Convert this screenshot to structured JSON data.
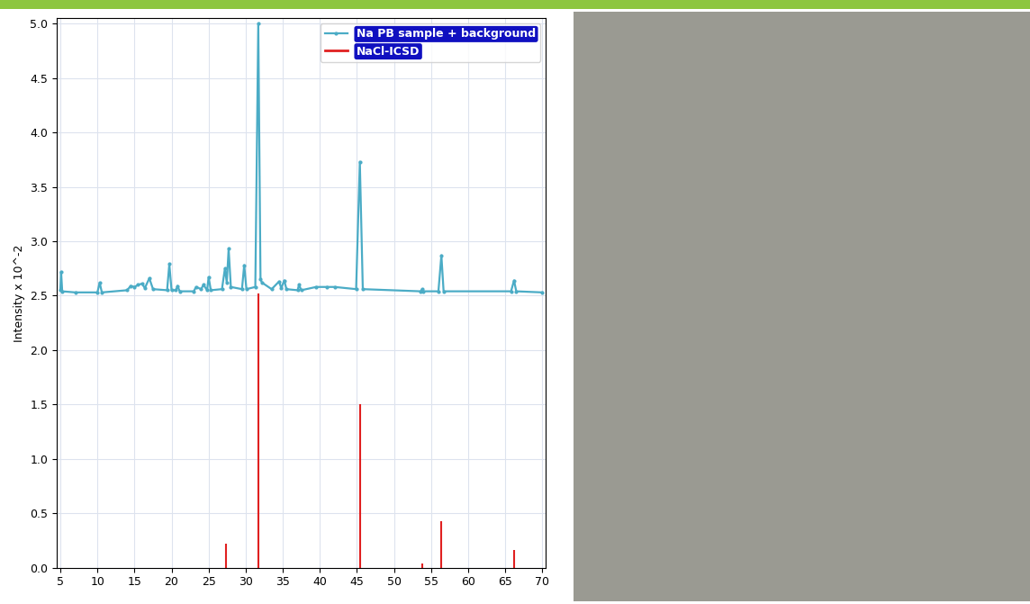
{
  "chart_data": {
    "type": "line",
    "y_label": "Intensity x 10^-2",
    "xlim": [
      4.5,
      70.5
    ],
    "xticks": [
      5,
      10,
      15,
      20,
      25,
      30,
      35,
      40,
      45,
      50,
      55,
      60,
      65,
      70
    ],
    "ylim": [
      0,
      5.05
    ],
    "yticks": [
      {
        "value": 0,
        "label": "0.0"
      },
      {
        "value": 0.5,
        "label": "0.5"
      },
      {
        "value": 1,
        "label": "1.0"
      },
      {
        "value": 1.5,
        "label": "1.5"
      },
      {
        "value": 2,
        "label": "2.0"
      },
      {
        "value": 2.5,
        "label": "2.5"
      },
      {
        "value": 3,
        "label": "3.0"
      },
      {
        "value": 3.5,
        "label": "3.5"
      },
      {
        "value": 4,
        "label": "4.0"
      },
      {
        "value": 4.5,
        "label": "4.5"
      },
      {
        "value": 5,
        "label": "5.0"
      }
    ],
    "grid": true,
    "legend": "upper right",
    "series": [
      {
        "name": "Na PB sample + background",
        "type": "line",
        "color": "#4bacc6",
        "marker": "o",
        "x": [
          5.0,
          5.1,
          5.25,
          7,
          10.0,
          10.3,
          10.6,
          14.0,
          14.5,
          15.0,
          15.5,
          16.0,
          16.4,
          17.0,
          17.5,
          19.4,
          19.7,
          20.0,
          20.6,
          20.8,
          21.1,
          23.0,
          23.3,
          24.0,
          24.3,
          24.8,
          25.0,
          25.3,
          26.8,
          27.2,
          27.45,
          27.7,
          28.0,
          29.5,
          29.8,
          30.1,
          31.3,
          31.7,
          32.0,
          32.2,
          33.5,
          34.5,
          34.8,
          35.2,
          35.5,
          37.0,
          37.2,
          37.5,
          39.5,
          41.0,
          42.0,
          44.9,
          45.4,
          45.8,
          53.6,
          53.8,
          54.0,
          56.0,
          56.4,
          56.7,
          65.8,
          66.2,
          66.5,
          70.0
        ],
        "values": [
          2.55,
          2.72,
          2.54,
          2.53,
          2.53,
          2.62,
          2.53,
          2.55,
          2.59,
          2.58,
          2.6,
          2.61,
          2.57,
          2.66,
          2.56,
          2.55,
          2.79,
          2.55,
          2.55,
          2.59,
          2.54,
          2.54,
          2.58,
          2.56,
          2.6,
          2.55,
          2.67,
          2.55,
          2.56,
          2.75,
          2.62,
          2.93,
          2.58,
          2.56,
          2.78,
          2.56,
          2.58,
          5.0,
          2.65,
          2.62,
          2.56,
          2.63,
          2.57,
          2.64,
          2.56,
          2.55,
          2.6,
          2.55,
          2.58,
          2.58,
          2.58,
          2.56,
          3.73,
          2.56,
          2.54,
          2.56,
          2.54,
          2.54,
          2.87,
          2.54,
          2.54,
          2.64,
          2.54,
          2.53
        ]
      },
      {
        "name": "NaCl-ICSD",
        "type": "stick",
        "color": "#e02020",
        "x": [
          27.3,
          31.7,
          45.4,
          53.8,
          56.4,
          66.2
        ],
        "values": [
          0.22,
          2.52,
          1.5,
          0.04,
          0.43,
          0.16
        ]
      }
    ]
  }
}
